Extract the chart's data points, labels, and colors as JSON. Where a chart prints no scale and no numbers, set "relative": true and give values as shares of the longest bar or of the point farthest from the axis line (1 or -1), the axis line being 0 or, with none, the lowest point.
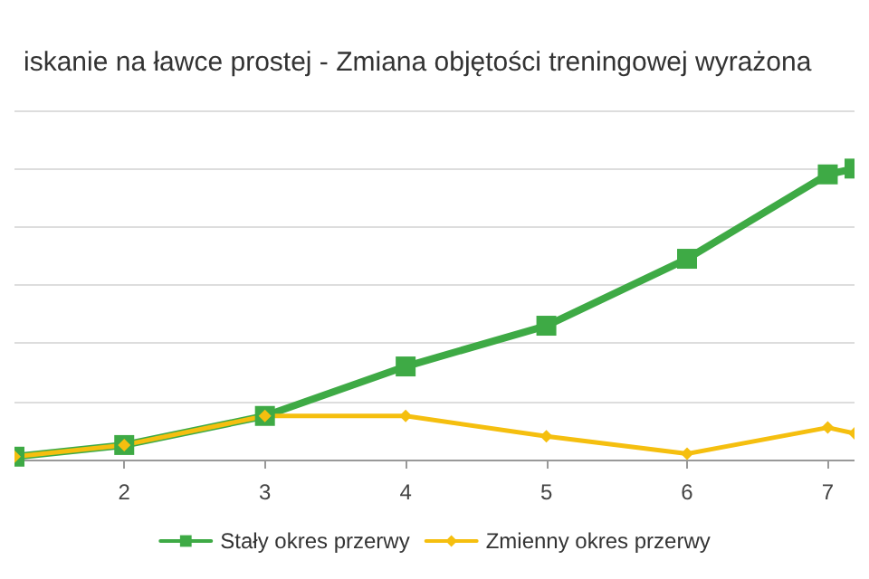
{
  "chart_data": {
    "type": "line",
    "title": "iskanie na ławce prostej - Zmiana objętości treningowej wyrażona",
    "relative": true,
    "xlim": [
      1.22,
      7.19
    ],
    "xticks": [
      2,
      3,
      4,
      5,
      6,
      7
    ],
    "grid": "y",
    "legend": "bottom",
    "line_style": "solid",
    "series": [
      {
        "name": "Stały okres przerwy",
        "color": "#3eaa45",
        "marker": "square",
        "x": [
          1.22,
          2,
          3,
          4,
          5,
          6,
          7,
          7.19
        ],
        "values": [
          0.01,
          0.05,
          0.15,
          0.32,
          0.46,
          0.69,
          0.98,
          1
        ]
      },
      {
        "name": "Zmienny okres przerwy",
        "color": "#f5bf0f",
        "marker": "diamond",
        "x": [
          1.22,
          2,
          3,
          4,
          5,
          6,
          7,
          7.19
        ],
        "values": [
          0.01,
          0.05,
          0.15,
          0.15,
          0.08,
          0.02,
          0.11,
          0.09
        ]
      }
    ]
  }
}
